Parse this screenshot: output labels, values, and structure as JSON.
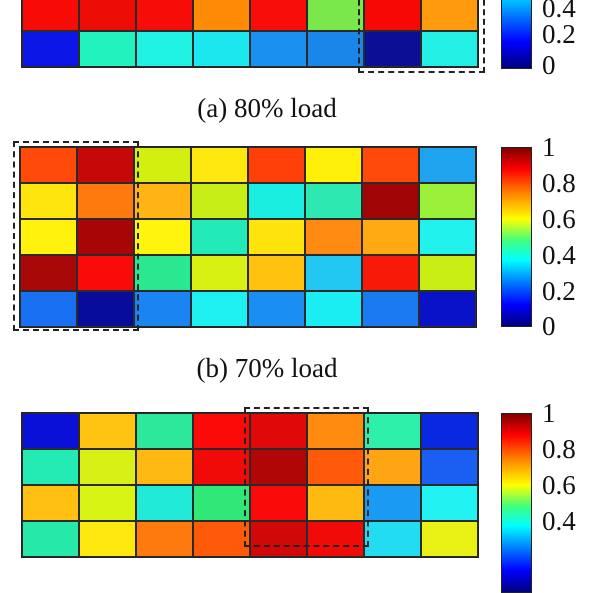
{
  "captions": {
    "a": "(a) 80% load",
    "b": "(b) 70% load"
  },
  "colorbar_ticks": [
    "1",
    "0.8",
    "0.6",
    "0.4",
    "0.2",
    "0"
  ],
  "colormap": "jet",
  "chart_data": [
    {
      "type": "heatmap",
      "title": "(a) 80% load",
      "note": "Top of panel cropped; only bottom two rows visible",
      "rows_visible": 2,
      "columns": 8,
      "values": [
        [
          0.88,
          0.88,
          0.88,
          0.75,
          0.88,
          0.5,
          0.88,
          0.72
        ],
        [
          0.12,
          0.42,
          0.37,
          0.36,
          0.22,
          0.25,
          0.03,
          0.37
        ]
      ],
      "highlight_box": {
        "columns": [
          7,
          8
        ],
        "label": "dashed box"
      },
      "colorbar": {
        "min": 0,
        "max": 1,
        "ticks": [
          0,
          0.2,
          0.4,
          0.6,
          0.8,
          1
        ]
      }
    },
    {
      "type": "heatmap",
      "title": "(b) 70% load",
      "rows": 5,
      "columns": 8,
      "values": [
        [
          0.82,
          0.95,
          0.58,
          0.62,
          0.82,
          0.62,
          0.82,
          0.28
        ],
        [
          0.62,
          0.76,
          0.68,
          0.55,
          0.38,
          0.42,
          0.97,
          0.52
        ],
        [
          0.62,
          0.95,
          0.62,
          0.42,
          0.62,
          0.76,
          0.7,
          0.37
        ],
        [
          0.97,
          0.88,
          0.45,
          0.58,
          0.67,
          0.33,
          0.88,
          0.57
        ],
        [
          0.22,
          0.05,
          0.24,
          0.36,
          0.3,
          0.37,
          0.25,
          0.1
        ]
      ],
      "highlight_box": {
        "columns": [
          1,
          2
        ],
        "label": "dashed box"
      },
      "colorbar": {
        "min": 0,
        "max": 1,
        "ticks": [
          0,
          0.2,
          0.4,
          0.6,
          0.8,
          1
        ]
      }
    },
    {
      "type": "heatmap",
      "title": "(c)",
      "note": "Bottom of panel cropped; top four rows visible",
      "rows_visible": 4,
      "columns": 8,
      "values": [
        [
          0.08,
          0.68,
          0.45,
          0.88,
          0.9,
          0.76,
          0.42,
          0.12
        ],
        [
          0.42,
          0.58,
          0.68,
          0.88,
          0.97,
          0.82,
          0.72,
          0.2
        ],
        [
          0.68,
          0.58,
          0.4,
          0.48,
          0.88,
          0.68,
          0.28,
          0.37
        ],
        [
          0.43,
          0.62,
          0.78,
          0.82,
          0.92,
          0.88,
          0.36,
          0.62
        ]
      ],
      "highlight_box": {
        "columns": [
          5,
          6
        ],
        "label": "dashed box"
      },
      "colorbar": {
        "min": 0,
        "max": 1,
        "ticks_visible": [
          0.4,
          0.6,
          0.8,
          1
        ]
      }
    }
  ],
  "cell_colors": {
    "a": [
      [
        "#f80a05",
        "#ee0c06",
        "#f70d07",
        "#ff8a06",
        "#f90d0a",
        "#7ae84a",
        "#f80805",
        "#ff9a0e"
      ],
      [
        "#0b16e6",
        "#22f2be",
        "#20f2e2",
        "#1ae8ee",
        "#1a90ef",
        "#1a86ea",
        "#0b0f93",
        "#23efe5"
      ]
    ],
    "b": [
      [
        "#ff4a0a",
        "#c70808",
        "#d2ef10",
        "#ffe80e",
        "#ff3f08",
        "#fff00a",
        "#ff4a0a",
        "#1ea4ef"
      ],
      [
        "#ffe50e",
        "#ff7a0e",
        "#ffb414",
        "#c8ee18",
        "#1aeee0",
        "#2ee8b2",
        "#a00404",
        "#9bf038"
      ],
      [
        "#fff20c",
        "#a80606",
        "#fff40c",
        "#22eab8",
        "#ffe40c",
        "#ff8a12",
        "#ffaa12",
        "#22f2ee"
      ],
      [
        "#a80808",
        "#fa0a08",
        "#2ae890",
        "#d8f012",
        "#ffc20e",
        "#22c8f2",
        "#f81a08",
        "#c8ee14"
      ],
      [
        "#1a70f2",
        "#080c9a",
        "#1a84f2",
        "#1ef0f2",
        "#1a8ef2",
        "#1aeef2",
        "#1a7af2",
        "#0a12c8"
      ]
    ],
    "c": [
      [
        "#0a10d8",
        "#ffc412",
        "#2ee89a",
        "#fc0a08",
        "#e00808",
        "#ff8a10",
        "#2ef0a8",
        "#0a28e0"
      ],
      [
        "#22eab2",
        "#d8f016",
        "#ffb812",
        "#f00a08",
        "#b00606",
        "#ff5a0a",
        "#ffa412",
        "#1a5ef2"
      ],
      [
        "#ffc012",
        "#d8f414",
        "#22ead8",
        "#30e878",
        "#fa0a08",
        "#ffba12",
        "#1a9af2",
        "#22f2f2"
      ],
      [
        "#26e8a8",
        "#ffe80e",
        "#ff7a0e",
        "#ff5a0a",
        "#d00808",
        "#f00a08",
        "#22dcf2",
        "#e8f014"
      ]
    ]
  }
}
